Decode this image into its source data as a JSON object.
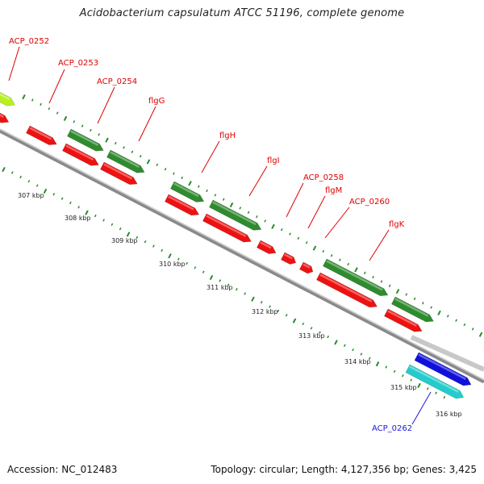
{
  "header": {
    "title": "Acidobacterium capsulatum ATCC 51196, complete genome"
  },
  "footer": {
    "accession": "Accession: NC_012483",
    "summary": "Topology: circular; Length: 4,127,356 bp; Genes: 3,425"
  },
  "colors": {
    "forward_cds": "#2e8b2e",
    "reverse_cds": "#ee1111",
    "highlight_cds": "#b8f020",
    "other_blue": "#1010dd",
    "other_cyan": "#22cccc",
    "backbone": "#999999",
    "tick": "#2a8a2a",
    "label_red": "#dd0000",
    "label_blue": "#1a1add"
  },
  "scale_labels": [
    "307 kbp",
    "308 kbp",
    "309 kbp",
    "310 kbp",
    "311 kbp",
    "312 kbp",
    "313 kbp",
    "314 kbp",
    "315 kbp",
    "316 kbp"
  ],
  "gene_labels": [
    {
      "text": "ACP_0252",
      "color": "red"
    },
    {
      "text": "ACP_0253",
      "color": "red"
    },
    {
      "text": "ACP_0254",
      "color": "red"
    },
    {
      "text": "flgG",
      "color": "red"
    },
    {
      "text": "flgH",
      "color": "red"
    },
    {
      "text": "flgI",
      "color": "red"
    },
    {
      "text": "ACP_0258",
      "color": "red"
    },
    {
      "text": "flgM",
      "color": "red"
    },
    {
      "text": "ACP_0260",
      "color": "red"
    },
    {
      "text": "flgK",
      "color": "red"
    },
    {
      "text": "ACP_0262",
      "color": "blue"
    }
  ]
}
